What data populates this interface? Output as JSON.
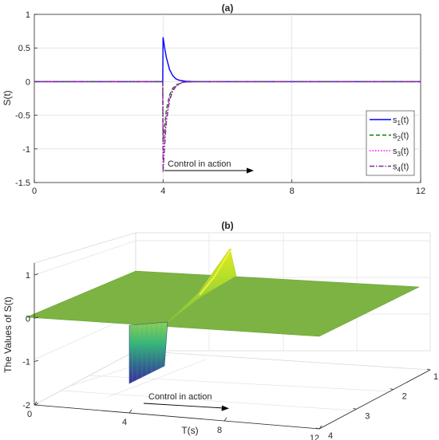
{
  "chart_data": [
    {
      "panel": "(a)",
      "type": "line",
      "title": "(a)",
      "xlabel": "",
      "ylabel": "S(t)",
      "xlim": [
        0,
        12
      ],
      "ylim": [
        -1.5,
        1
      ],
      "xticks": [
        0,
        4,
        8,
        12
      ],
      "yticks": [
        -1.5,
        -1,
        -0.5,
        0,
        0.5,
        1
      ],
      "grid": true,
      "legend_position": "bottom-right",
      "annotation": "Control in action",
      "series": [
        {
          "name": "s1(t)",
          "label_base": "s",
          "label_sub": "1",
          "label_tail": "(t)",
          "color": "#0000ff",
          "style": "solid",
          "x": [
            0,
            3.99,
            4.0,
            4.05,
            4.1,
            4.2,
            4.3,
            4.4,
            4.5,
            4.7,
            5.0,
            12
          ],
          "y": [
            0,
            0,
            0.66,
            0.5,
            0.36,
            0.18,
            0.09,
            0.04,
            0.02,
            0.005,
            0,
            0
          ]
        },
        {
          "name": "s2(t)",
          "label_base": "s",
          "label_sub": "2",
          "label_tail": "(t)",
          "color": "#008000",
          "style": "dashed",
          "x": [
            0,
            3.99,
            4.0,
            4.05,
            4.1,
            4.2,
            4.3,
            4.4,
            4.6,
            5.0,
            12
          ],
          "y": [
            0,
            0,
            -0.9,
            -0.65,
            -0.42,
            -0.2,
            -0.1,
            -0.05,
            -0.01,
            0,
            0
          ]
        },
        {
          "name": "s3(t)",
          "label_base": "s",
          "label_sub": "3",
          "label_tail": "(t)",
          "color": "#ff00ff",
          "style": "dotted",
          "x": [
            0,
            3.99,
            4.0,
            4.05,
            4.1,
            4.2,
            4.3,
            4.4,
            4.6,
            5.0,
            12
          ],
          "y": [
            0,
            0,
            -1.15,
            -0.8,
            -0.5,
            -0.24,
            -0.12,
            -0.06,
            -0.01,
            0,
            0
          ]
        },
        {
          "name": "s4(t)",
          "label_base": "s",
          "label_sub": "4",
          "label_tail": "(t)",
          "color": "#7e2f8e",
          "style": "dashdot",
          "x": [
            0,
            3.99,
            4.0,
            4.05,
            4.1,
            4.2,
            4.3,
            4.4,
            4.6,
            5.0,
            12
          ],
          "y": [
            0,
            0,
            -1.35,
            -0.95,
            -0.6,
            -0.28,
            -0.14,
            -0.07,
            -0.01,
            0,
            0
          ]
        }
      ]
    },
    {
      "panel": "(b)",
      "type": "surface",
      "title": "(b)",
      "xlabel": "T(s)",
      "ylabel": "",
      "zlabel": "The Values of S(t)",
      "xlim": [
        0,
        12
      ],
      "ylim": [
        1,
        4
      ],
      "zlim": [
        -2,
        1
      ],
      "xticks": [
        0,
        4,
        8,
        12
      ],
      "yticks": [
        1,
        2,
        3,
        4
      ],
      "zticks": [
        -2,
        -1,
        0,
        1
      ],
      "grid": true,
      "annotation": "Control in action",
      "peak_value": 0.66,
      "trough_value": -1.35
    }
  ]
}
